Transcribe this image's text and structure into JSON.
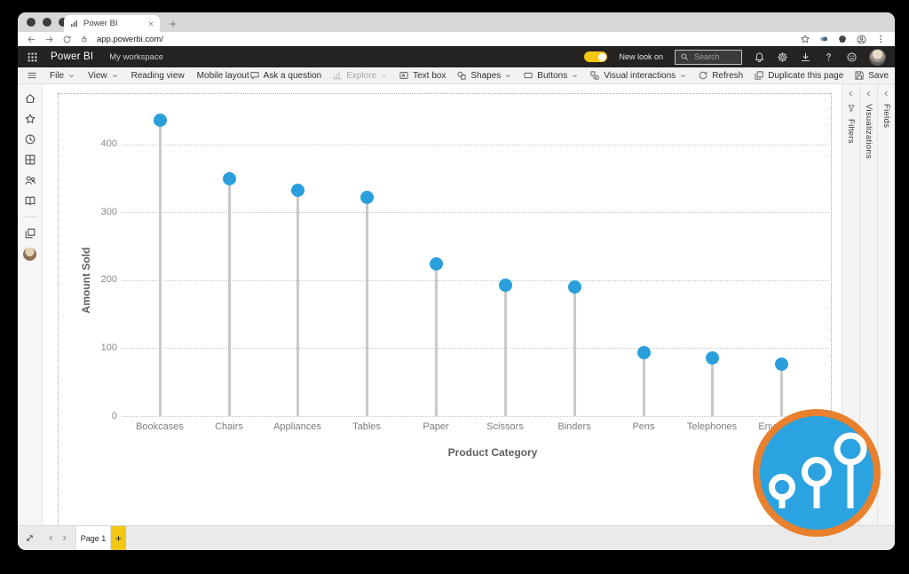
{
  "browser": {
    "tab_title": "Power BI",
    "url": "app.powerbi.com/"
  },
  "topbar": {
    "product": "Power BI",
    "workspace": "My workspace",
    "new_look_label": "New look on",
    "search_placeholder": "Search",
    "right_icons": [
      "bell",
      "gear",
      "download",
      "question",
      "smiley",
      "avatar"
    ]
  },
  "menubar": {
    "left": [
      {
        "icon": "hamburger",
        "label": ""
      },
      {
        "label": "File",
        "chevron": true
      },
      {
        "label": "View",
        "chevron": true
      },
      {
        "label": "Reading view"
      },
      {
        "label": "Mobile layout"
      }
    ],
    "right": [
      {
        "icon": "chat",
        "label": "Ask a question"
      },
      {
        "icon": "explore",
        "label": "Explore",
        "chevron": true,
        "disabled": true
      },
      {
        "icon": "textbox",
        "label": "Text box"
      },
      {
        "icon": "shapes",
        "label": "Shapes",
        "chevron": true
      },
      {
        "icon": "buttons",
        "label": "Buttons",
        "chevron": true
      },
      {
        "icon": "interactions",
        "label": "Visual interactions",
        "chevron": true
      },
      {
        "icon": "refresh",
        "label": "Refresh"
      },
      {
        "icon": "duplicate",
        "label": "Duplicate this page"
      },
      {
        "icon": "save",
        "label": "Save"
      },
      {
        "icon": "ellipsis",
        "label": ""
      }
    ]
  },
  "left_rail": {
    "icons": [
      "home",
      "star",
      "clock",
      "grid",
      "people",
      "book"
    ],
    "lower_icons": [
      "pages",
      "avatar"
    ]
  },
  "right_panels": [
    {
      "label": "Filters",
      "icon": "funnel"
    },
    {
      "label": "Visualizations",
      "icon": null
    },
    {
      "label": "Fields",
      "icon": null
    }
  ],
  "chart_data": {
    "type": "scatter",
    "variant": "lollipop",
    "categories": [
      "Bookcases",
      "Chairs",
      "Appliances",
      "Tables",
      "Paper",
      "Scissors",
      "Binders",
      "Pens",
      "Telephones",
      "Envelopes"
    ],
    "values": [
      435,
      349,
      332,
      322,
      224,
      193,
      190,
      93,
      85,
      77
    ],
    "title": "",
    "xlabel": "Product Category",
    "ylabel": "Amount Sold",
    "ylim": [
      0,
      450
    ],
    "yticks": [
      0,
      100,
      200,
      300,
      400
    ],
    "grid": "horizontal-dotted",
    "legend": "none",
    "point_color": "#2B9FDC",
    "stem_color": "#C9C9C9"
  },
  "pagebar": {
    "page_label": "Page 1",
    "add_label": "+"
  },
  "badge": {
    "kind": "lollipop-chart-badge",
    "ring_color": "#E8802D",
    "fill_color": "#2BA3E0",
    "glyph_color": "#FFFFFF"
  },
  "colors": {
    "accent_yellow": "#F2C811",
    "topbar_black": "#242321",
    "dot_blue": "#2B9FDC",
    "stem_gray": "#C9C9C9"
  }
}
